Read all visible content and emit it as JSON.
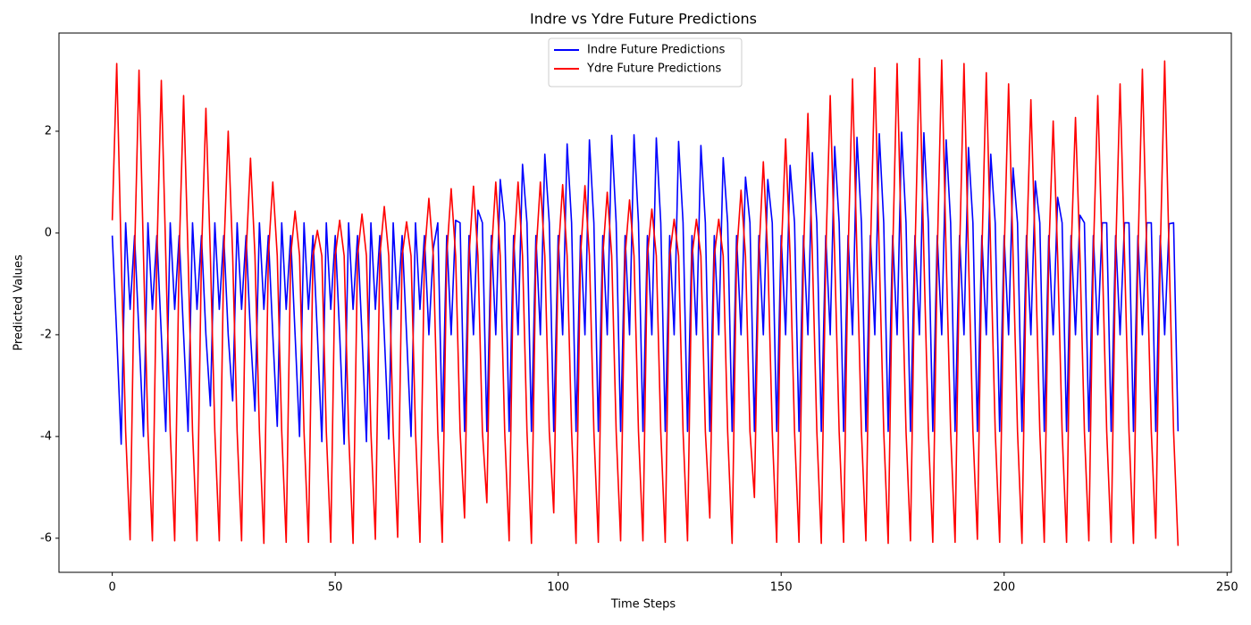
{
  "chart_data": {
    "type": "line",
    "title": "Indre vs Ydre Future Predictions",
    "x_label": "Time Steps",
    "y_label": "Predicted Values",
    "x": [
      0,
      1,
      2,
      3,
      4,
      5,
      6,
      7,
      8,
      9,
      10,
      11,
      12,
      13,
      14,
      15,
      16,
      17,
      18,
      19,
      20,
      21,
      22,
      23,
      24,
      25,
      26,
      27,
      28,
      29,
      30,
      31,
      32,
      33,
      34,
      35,
      36,
      37,
      38,
      39,
      40,
      41,
      42,
      43,
      44,
      45,
      46,
      47,
      48,
      49,
      50,
      51,
      52,
      53,
      54,
      55,
      56,
      57,
      58,
      59,
      60,
      61,
      62,
      63,
      64,
      65,
      66,
      67,
      68,
      69,
      70,
      71,
      72,
      73,
      74,
      75,
      76,
      77,
      78,
      79,
      80,
      81,
      82,
      83,
      84,
      85,
      86,
      87,
      88,
      89,
      90,
      91,
      92,
      93,
      94,
      95,
      96,
      97,
      98,
      99,
      100,
      101,
      102,
      103,
      104,
      105,
      106,
      107,
      108,
      109,
      110,
      111,
      112,
      113,
      114,
      115,
      116,
      117,
      118,
      119,
      120,
      121,
      122,
      123,
      124,
      125,
      126,
      127,
      128,
      129,
      130,
      131,
      132,
      133,
      134,
      135,
      136,
      137,
      138,
      139,
      140,
      141,
      142,
      143,
      144,
      145,
      146,
      147,
      148,
      149,
      150,
      151,
      152,
      153,
      154,
      155,
      156,
      157,
      158,
      159,
      160,
      161,
      162,
      163,
      164,
      165,
      166,
      167,
      168,
      169,
      170,
      171,
      172,
      173,
      174,
      175,
      176,
      177,
      178,
      179,
      180,
      181,
      182,
      183,
      184,
      185,
      186,
      187,
      188,
      189,
      190,
      191,
      192,
      193,
      194,
      195,
      196,
      197,
      198,
      199,
      200,
      201,
      202,
      203,
      204,
      205,
      206,
      207,
      208,
      209,
      210,
      211,
      212,
      213,
      214,
      215,
      216,
      217,
      218,
      219,
      220,
      221,
      222,
      223,
      224,
      225,
      226,
      227,
      228,
      229,
      230,
      231,
      232,
      233,
      234,
      235,
      236,
      237,
      238,
      239
    ],
    "series": [
      {
        "name": "Indre Future Predictions",
        "color": "#0000ff",
        "values": [
          -0.05,
          -2.0,
          -4.15,
          0.2,
          -1.5,
          -0.05,
          -2.0,
          -4.0,
          0.2,
          -1.5,
          -0.05,
          -2.0,
          -3.9,
          0.2,
          -1.5,
          -0.05,
          -2.0,
          -3.9,
          0.2,
          -1.5,
          -0.05,
          -2.0,
          -3.4,
          0.2,
          -1.5,
          -0.05,
          -2.0,
          -3.3,
          0.2,
          -1.5,
          -0.05,
          -2.0,
          -3.5,
          0.2,
          -1.5,
          -0.05,
          -2.0,
          -3.8,
          0.2,
          -1.5,
          -0.05,
          -2.0,
          -4.0,
          0.2,
          -1.5,
          -0.05,
          -2.0,
          -4.1,
          0.2,
          -1.5,
          -0.05,
          -2.0,
          -4.15,
          0.2,
          -1.5,
          -0.05,
          -2.0,
          -4.1,
          0.2,
          -1.5,
          -0.05,
          -2.0,
          -4.05,
          0.2,
          -1.5,
          -0.05,
          -2.0,
          -4.0,
          0.2,
          -1.5,
          -0.05,
          -2.0,
          -0.3,
          0.2,
          -3.9,
          -0.05,
          -2.0,
          0.25,
          0.2,
          -3.9,
          -0.05,
          -2.0,
          0.45,
          0.2,
          -3.9,
          -0.05,
          -2.0,
          1.05,
          0.2,
          -3.9,
          -0.05,
          -2.0,
          1.35,
          0.2,
          -3.9,
          -0.05,
          -2.0,
          1.55,
          0.2,
          -3.9,
          -0.05,
          -2.0,
          1.75,
          0.2,
          -3.9,
          -0.05,
          -2.0,
          1.83,
          0.2,
          -3.9,
          -0.05,
          -2.0,
          1.92,
          0.2,
          -3.9,
          -0.05,
          -2.0,
          1.93,
          0.2,
          -3.9,
          -0.05,
          -2.0,
          1.87,
          0.2,
          -3.9,
          -0.05,
          -2.0,
          1.8,
          0.2,
          -3.9,
          -0.05,
          -2.0,
          1.72,
          0.2,
          -3.9,
          -0.05,
          -2.0,
          1.48,
          0.2,
          -3.9,
          -0.05,
          -2.0,
          1.1,
          0.2,
          -3.9,
          -0.05,
          -2.0,
          1.05,
          0.2,
          -3.9,
          -0.05,
          -2.0,
          1.33,
          0.2,
          -3.9,
          -0.05,
          -2.0,
          1.58,
          0.2,
          -3.9,
          -0.05,
          -2.0,
          1.7,
          0.2,
          -3.9,
          -0.05,
          -2.0,
          1.88,
          0.2,
          -3.9,
          -0.05,
          -2.0,
          1.95,
          0.2,
          -3.9,
          -0.05,
          -2.0,
          1.98,
          0.2,
          -3.9,
          -0.05,
          -2.0,
          1.97,
          0.2,
          -3.9,
          -0.05,
          -2.0,
          1.83,
          0.2,
          -3.9,
          -0.05,
          -2.0,
          1.68,
          0.2,
          -3.9,
          -0.05,
          -2.0,
          1.55,
          0.2,
          -3.9,
          -0.05,
          -2.0,
          1.28,
          0.2,
          -3.9,
          -0.05,
          -2.0,
          1.02,
          0.2,
          -3.9,
          -0.05,
          -2.0,
          0.7,
          0.2,
          -3.9,
          -0.05,
          -2.0,
          0.35,
          0.2,
          -3.9,
          -0.05,
          -2.0,
          0.2,
          0.2,
          -3.9,
          -0.05,
          -2.0,
          0.2,
          0.2,
          -3.9,
          -0.05,
          -2.0,
          0.2,
          0.2,
          -3.9,
          -0.05,
          -2.0,
          0.18,
          0.2,
          -3.9
        ]
      },
      {
        "name": "Ydre Future Predictions",
        "color": "#ff0000",
        "values": [
          0.25,
          3.33,
          -0.45,
          -3.9,
          -6.03,
          -0.45,
          3.2,
          -0.45,
          -3.9,
          -6.05,
          -0.45,
          3.0,
          -0.45,
          -3.9,
          -6.05,
          -0.45,
          2.7,
          -0.45,
          -3.9,
          -6.05,
          -0.45,
          2.45,
          -0.45,
          -3.9,
          -6.05,
          -0.45,
          2.0,
          -0.45,
          -3.9,
          -6.05,
          -0.45,
          1.47,
          -0.45,
          -3.9,
          -6.1,
          -0.45,
          1.0,
          -0.45,
          -3.9,
          -6.08,
          -0.45,
          0.43,
          -0.45,
          -3.9,
          -6.08,
          -0.45,
          0.05,
          -0.45,
          -3.9,
          -6.08,
          -0.45,
          0.25,
          -0.45,
          -3.9,
          -6.1,
          -0.45,
          0.37,
          -0.45,
          -3.9,
          -6.02,
          -0.45,
          0.52,
          -0.45,
          -3.9,
          -5.98,
          -0.45,
          0.22,
          -0.45,
          -3.9,
          -6.08,
          -0.45,
          0.68,
          -0.45,
          -3.9,
          -6.08,
          -0.45,
          0.87,
          -0.45,
          -3.9,
          -5.6,
          -0.45,
          0.92,
          -0.45,
          -3.9,
          -5.3,
          -0.45,
          1.0,
          -0.45,
          -3.9,
          -6.05,
          -0.45,
          1.0,
          -0.45,
          -3.9,
          -6.1,
          -0.45,
          1.0,
          -0.45,
          -3.9,
          -5.5,
          -0.45,
          0.95,
          -0.45,
          -3.9,
          -6.1,
          -0.45,
          0.93,
          -0.45,
          -3.9,
          -6.08,
          -0.45,
          0.8,
          -0.45,
          -3.9,
          -6.05,
          -0.45,
          0.65,
          -0.45,
          -3.9,
          -6.05,
          -0.45,
          0.47,
          -0.45,
          -3.9,
          -6.08,
          -0.45,
          0.27,
          -0.45,
          -3.9,
          -6.05,
          -0.45,
          0.27,
          -0.45,
          -3.9,
          -5.6,
          -0.45,
          0.27,
          -0.45,
          -3.9,
          -6.1,
          -0.45,
          0.84,
          -0.45,
          -3.9,
          -5.2,
          -0.45,
          1.4,
          -0.45,
          -3.9,
          -6.08,
          -0.45,
          1.85,
          -0.45,
          -3.9,
          -6.08,
          -0.45,
          2.35,
          -0.45,
          -3.9,
          -6.1,
          -0.45,
          2.7,
          -0.45,
          -3.9,
          -6.08,
          -0.45,
          3.03,
          -0.45,
          -3.9,
          -6.05,
          -0.45,
          3.25,
          -0.45,
          -3.9,
          -6.1,
          -0.45,
          3.33,
          -0.45,
          -3.9,
          -6.05,
          -0.45,
          3.43,
          -0.45,
          -3.9,
          -6.08,
          -0.45,
          3.4,
          -0.45,
          -3.9,
          -6.08,
          -0.45,
          3.33,
          -0.45,
          -3.9,
          -6.02,
          -0.45,
          3.15,
          -0.45,
          -3.9,
          -6.08,
          -0.45,
          2.93,
          -0.45,
          -3.9,
          -6.1,
          -0.45,
          2.62,
          -0.45,
          -3.9,
          -6.08,
          -0.45,
          2.2,
          -0.45,
          -3.9,
          -6.08,
          -0.45,
          2.27,
          -0.45,
          -3.9,
          -6.05,
          -0.45,
          2.7,
          -0.45,
          -3.9,
          -6.08,
          -0.45,
          2.93,
          -0.45,
          -3.9,
          -6.1,
          -0.45,
          3.22,
          -0.45,
          -3.9,
          -6.0,
          -0.45,
          3.38,
          -0.45,
          -3.9,
          -6.15
        ]
      }
    ],
    "xlim": [
      -11.95,
      250.95
    ],
    "xticks": [
      0,
      50,
      100,
      150,
      200,
      250
    ],
    "ylim": [
      -6.67,
      3.93
    ],
    "yticks": [
      -6,
      -4,
      -2,
      0,
      2
    ],
    "legend": "upper center"
  }
}
